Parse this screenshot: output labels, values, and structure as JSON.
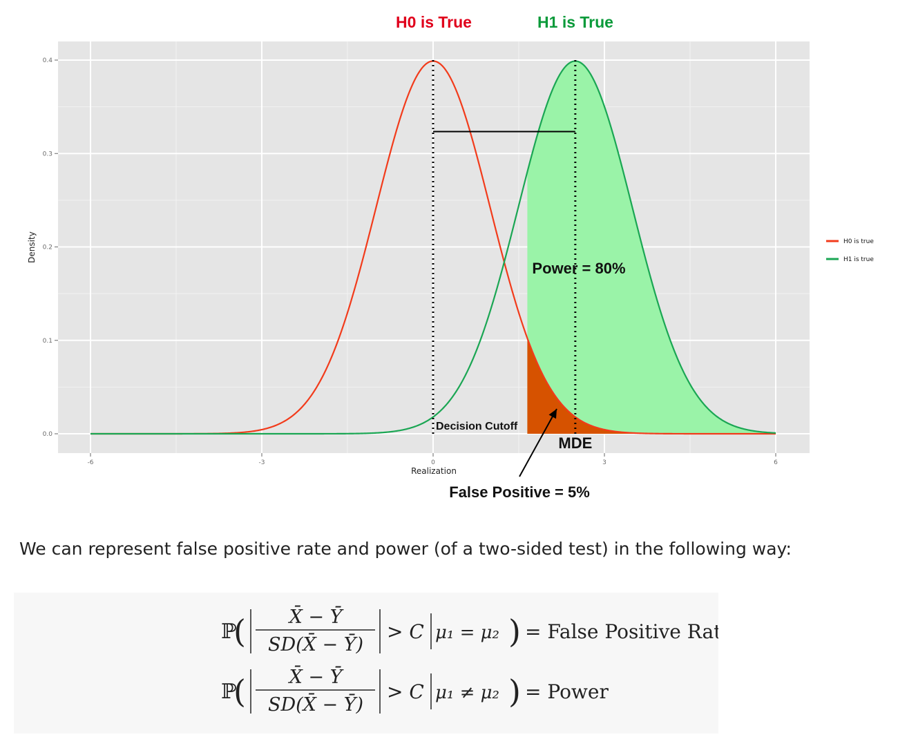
{
  "headers": {
    "h0": {
      "text": "H0 is True",
      "color": "#e0001b"
    },
    "h1": {
      "text": "H1 is True",
      "color": "#0a9a3a"
    }
  },
  "chart_data": {
    "type": "line",
    "title": "",
    "xlabel": "Realization",
    "ylabel": "Density",
    "xlim": [
      -6,
      6
    ],
    "ylim": [
      0,
      0.4
    ],
    "x_ticks": [
      -6,
      -3,
      0,
      3,
      6
    ],
    "x_tick_labels": [
      "-6",
      "-3",
      "0",
      "3",
      "6"
    ],
    "y_ticks": [
      0.0,
      0.1,
      0.2,
      0.3,
      0.4
    ],
    "y_tick_labels": [
      "0.0",
      "0.1",
      "0.2",
      "0.3",
      "0.4"
    ],
    "grid": true,
    "legend_position": "right",
    "series": [
      {
        "name": "H0 is true",
        "color": "#f23b1b",
        "distribution": "normal",
        "mean": 0,
        "sd": 1
      },
      {
        "name": "H1 is true",
        "color": "#1aa653",
        "distribution": "normal",
        "mean": 2.49,
        "sd": 1
      }
    ],
    "decision_cutoff": 1.65,
    "mde": 2.49,
    "annotations": {
      "power": "Power = 80%",
      "decision_cutoff": "Decision Cutoff",
      "mde": "MDE",
      "false_positive": "False Positive = 5%"
    },
    "colors": {
      "power_fill": "#9af3a8",
      "false_positive_fill": "#d65200",
      "panel_bg": "#e5e5e5",
      "grid": "#ffffff"
    }
  },
  "text": {
    "sentence": "We can represent false positive rate and power (of a two-sided test) in the following way:"
  },
  "formulas": {
    "numerator": "X̄ − Ȳ",
    "denominator": "SD(X̄ − Ȳ)",
    "prob": "ℙ",
    "gt": "> C",
    "cond_eq": "μ₁ = μ₂",
    "cond_ne": "μ₁ ≠ μ₂",
    "rhs1": "= False Positive Rate",
    "rhs2": "= Power"
  }
}
